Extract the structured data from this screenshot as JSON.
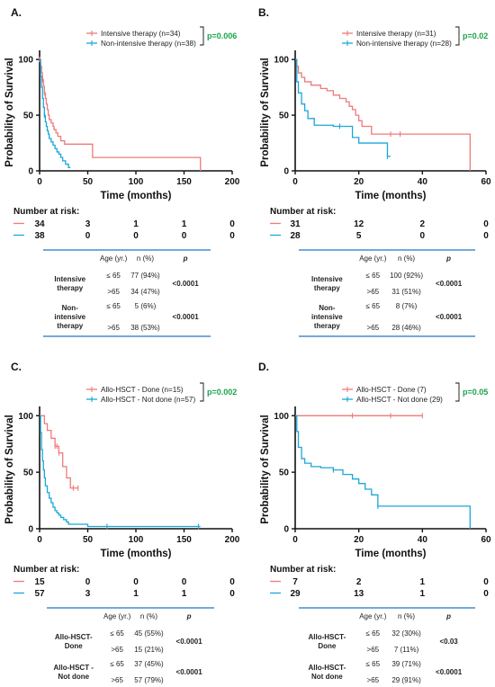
{
  "colors": {
    "intensive": "#ef7a7a",
    "non_intensive": "#1aa7d9",
    "pvalue": "#19a34a",
    "table_rule": "#1f77c4"
  },
  "risk_title": "Number at risk:",
  "chart_data": [
    {
      "type": "line",
      "panel": "A.",
      "xlabel": "Time (months)",
      "ylabel": "Probability of Survival",
      "xlim": [
        0,
        200
      ],
      "ylim": [
        0,
        105
      ],
      "xticks": [
        0,
        50,
        100,
        150,
        200
      ],
      "yticks": [
        0,
        50,
        100
      ],
      "pvalue": "p=0.006",
      "series": [
        {
          "name": "Intensive therapy (n=34)",
          "color": "intensive",
          "censored": [
            0,
            0.5,
            1,
            3,
            5
          ],
          "x": [
            0,
            1,
            2,
            3,
            4,
            5,
            6,
            7,
            8,
            9,
            10,
            12,
            14,
            15,
            17,
            19,
            22,
            26,
            30,
            38,
            55,
            167
          ],
          "y": [
            100,
            94,
            88,
            82,
            76,
            70,
            65,
            60,
            55,
            50,
            46,
            43,
            40,
            37,
            34,
            31,
            27,
            24,
            24,
            24,
            12,
            0
          ]
        },
        {
          "name": "Non-intensive therapy (n=38)",
          "color": "non_intensive",
          "censored": [
            5
          ],
          "x": [
            0,
            1,
            2,
            3,
            4,
            5,
            6,
            7,
            8,
            9,
            10,
            12,
            14,
            16,
            18,
            20,
            22,
            24,
            27,
            30,
            32
          ],
          "y": [
            100,
            85,
            75,
            65,
            57,
            50,
            44,
            40,
            36,
            33,
            29,
            26,
            23,
            20,
            17,
            15,
            12,
            9,
            6,
            3,
            3
          ]
        }
      ],
      "risk": [
        {
          "color": "intensive",
          "values": [
            "34",
            "3",
            "1",
            "1",
            "0"
          ]
        },
        {
          "color": "non_intensive",
          "values": [
            "38",
            "0",
            "0",
            "0",
            "0"
          ]
        }
      ],
      "table": {
        "headers": [
          "Age (yr.)",
          "n (%)",
          "p"
        ],
        "groups": [
          {
            "label": [
              "Intensive",
              "therapy"
            ],
            "rows": [
              [
                "≤ 65",
                "77 (94%)"
              ],
              [
                ">65",
                "34 (47%)"
              ]
            ],
            "p": "<0.0001"
          },
          {
            "label": [
              "Non-",
              "intensive",
              "therapy"
            ],
            "rows": [
              [
                "≤ 65",
                "5 (6%)"
              ],
              [
                ">65",
                "38 (53%)"
              ]
            ],
            "p": "<0.0001"
          }
        ]
      }
    },
    {
      "type": "line",
      "panel": "B.",
      "xlabel": "Time (months)",
      "ylabel": "Probability of Survival",
      "xlim": [
        0,
        60
      ],
      "ylim": [
        0,
        105
      ],
      "xticks": [
        0,
        20,
        40,
        60
      ],
      "yticks": [
        0,
        50,
        100
      ],
      "pvalue": "p=0.02",
      "series": [
        {
          "name": "Intensive therapy (n=31)",
          "color": "intensive",
          "censored": [
            30,
            33
          ],
          "x": [
            0,
            0.5,
            1,
            2,
            3,
            5,
            8,
            10,
            12,
            14,
            16,
            17,
            18,
            19,
            20,
            21,
            24,
            55
          ],
          "y": [
            100,
            94,
            88,
            84,
            80,
            77,
            74,
            72,
            68,
            65,
            62,
            58,
            55,
            50,
            45,
            40,
            33,
            0
          ]
        },
        {
          "name": "Non-intensive therapy (n=28)",
          "color": "non_intensive",
          "censored": [
            14,
            29
          ],
          "x": [
            0,
            0.5,
            1,
            2,
            3,
            4,
            6,
            12,
            18,
            20,
            29,
            30
          ],
          "y": [
            100,
            80,
            70,
            60,
            54,
            47,
            41,
            40,
            30,
            25,
            13,
            13
          ]
        }
      ],
      "risk": [
        {
          "color": "intensive",
          "values": [
            "31",
            "12",
            "2",
            "0"
          ]
        },
        {
          "color": "non_intensive",
          "values": [
            "28",
            "5",
            "0",
            "0"
          ]
        }
      ],
      "table": {
        "headers": [
          "Age (yr.)",
          "n (%)",
          "p"
        ],
        "groups": [
          {
            "label": [
              "Intensive",
              "therapy"
            ],
            "rows": [
              [
                "≤ 65",
                "100  (92%)"
              ],
              [
                ">65",
                "31 (51%)"
              ]
            ],
            "p": "<0.0001"
          },
          {
            "label": [
              "Non-",
              "intensive",
              "therapy"
            ],
            "rows": [
              [
                "≤ 65",
                "8 (7%)"
              ],
              [
                ">65",
                "28 (46%)"
              ]
            ],
            "p": "<0.0001"
          }
        ]
      }
    },
    {
      "type": "line",
      "panel": "C.",
      "xlabel": "Time (months)",
      "ylabel": "Probability of Survival",
      "xlim": [
        0,
        200
      ],
      "ylim": [
        0,
        105
      ],
      "xticks": [
        0,
        50,
        100,
        150,
        200
      ],
      "yticks": [
        0,
        50,
        100
      ],
      "pvalue": "p=0.002",
      "series": [
        {
          "name": "Allo-HSCT - Done (n=15)",
          "color": "intensive",
          "censored": [
            16,
            18,
            20,
            35,
            40
          ],
          "x": [
            0,
            5,
            8,
            12,
            16,
            20,
            24,
            28,
            32,
            40
          ],
          "y": [
            100,
            93,
            87,
            80,
            73,
            67,
            55,
            45,
            36,
            36
          ]
        },
        {
          "name": "Allo-HSCT - Not done (n=57)",
          "color": "non_intensive",
          "censored": [
            70,
            165
          ],
          "x": [
            0,
            1,
            2,
            3,
            4,
            5,
            6,
            8,
            10,
            12,
            14,
            16,
            18,
            20,
            22,
            25,
            28,
            30,
            40,
            50,
            167
          ],
          "y": [
            100,
            85,
            70,
            60,
            52,
            45,
            38,
            32,
            27,
            23,
            19,
            16,
            14,
            12,
            10,
            8,
            6,
            4,
            4,
            2,
            2
          ]
        }
      ],
      "risk": [
        {
          "color": "intensive",
          "values": [
            "15",
            "0",
            "0",
            "0",
            "0"
          ]
        },
        {
          "color": "non_intensive",
          "values": [
            "57",
            "3",
            "1",
            "1",
            "0"
          ]
        }
      ],
      "table": {
        "headers": [
          "Age (yr.)",
          "n (%)",
          "p"
        ],
        "groups": [
          {
            "label": [
              "Allo-HSCT-",
              "Done"
            ],
            "rows": [
              [
                "≤ 65",
                "45 (55%)"
              ],
              [
                ">65",
                "15 (21%)"
              ]
            ],
            "p": "<0.0001"
          },
          {
            "label": [
              "Allo-HSCT -",
              "Not done"
            ],
            "rows": [
              [
                "≤ 65",
                "37 (45%)"
              ],
              [
                ">65",
                "57 (79%)"
              ]
            ],
            "p": "<0.0001"
          }
        ]
      }
    },
    {
      "type": "line",
      "panel": "D.",
      "xlabel": "Time (months)",
      "ylabel": "Probability of Survival",
      "xlim": [
        0,
        60
      ],
      "ylim": [
        0,
        105
      ],
      "xticks": [
        0,
        20,
        40,
        60
      ],
      "yticks": [
        0,
        50,
        100
      ],
      "pvalue": "p=0.05",
      "series": [
        {
          "name": "Allo-HSCT - Done (7)",
          "color": "intensive",
          "censored": [
            18,
            30,
            40
          ],
          "x": [
            0,
            40
          ],
          "y": [
            100,
            100
          ]
        },
        {
          "name": "Allo-HSCT - Not done (29)",
          "color": "non_intensive",
          "censored": [
            12,
            26
          ],
          "x": [
            0,
            0.5,
            1,
            2,
            3,
            5,
            8,
            12,
            15,
            18,
            20,
            22,
            24,
            26,
            55
          ],
          "y": [
            100,
            86,
            72,
            62,
            58,
            55,
            54,
            52,
            48,
            44,
            40,
            35,
            30,
            20,
            0
          ]
        }
      ],
      "risk": [
        {
          "color": "intensive",
          "values": [
            "7",
            "2",
            "1",
            "0"
          ]
        },
        {
          "color": "non_intensive",
          "values": [
            "29",
            "13",
            "1",
            "0"
          ]
        }
      ],
      "table": {
        "headers": [
          "Age (yr.)",
          "n (%)",
          "p"
        ],
        "groups": [
          {
            "label": [
              "Allo-HSCT-",
              "Done"
            ],
            "rows": [
              [
                "≤ 65",
                "32 (30%)"
              ],
              [
                ">65",
                "7 (11%)"
              ]
            ],
            "p": "<0.03"
          },
          {
            "label": [
              "Allo-HSCT-",
              "Not done"
            ],
            "rows": [
              [
                "≤ 65",
                "39 (71%)"
              ],
              [
                ">65",
                "29 (91%)"
              ]
            ],
            "p": "<0.0001"
          }
        ]
      }
    }
  ]
}
